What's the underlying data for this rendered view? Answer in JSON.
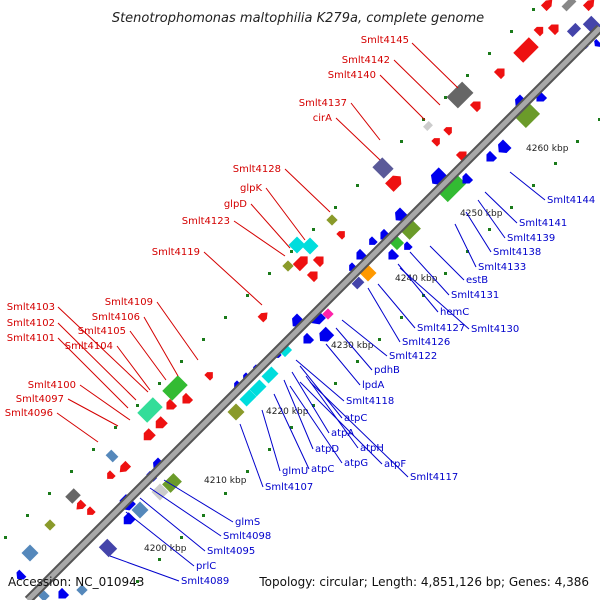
{
  "title": "Stenotrophomonas maltophilia K279a, complete genome",
  "accession": "Accession: NC_010943",
  "topology": "Topology: circular; Length: 4,851,126 bp; Genes: 4,386",
  "colors": {
    "forward_label": "#d40000",
    "reverse_label": "#0000cc",
    "backbone": "#808080",
    "tick_mark": "#1a7a1a"
  },
  "scale_ticks": [
    "4200 kbp",
    "4210 kbp",
    "4220 kbp",
    "4230 kbp",
    "4240 kbp",
    "4250 kbp",
    "4260 kbp"
  ],
  "forward_labels": [
    "Smlt4145",
    "Smlt4142",
    "Smlt4140",
    "Smlt4137",
    "cirA",
    "Smlt4128",
    "glpK",
    "glpD",
    "Smlt4123",
    "Smlt4119",
    "Smlt4109",
    "Smlt4106",
    "Smlt4105",
    "Smlt4104",
    "Smlt4103",
    "Smlt4102",
    "Smlt4101",
    "Smlt4100",
    "Smlt4097",
    "Smlt4096"
  ],
  "reverse_labels": [
    "Smlt4144",
    "Smlt4141",
    "Smlt4139",
    "Smlt4138",
    "Smlt4133",
    "estB",
    "Smlt4131",
    "hemC",
    "Smlt4130",
    "Smlt4127",
    "Smlt4126",
    "Smlt4122",
    "pdhB",
    "lpdA",
    "Smlt4118",
    "atpC",
    "atpA",
    "atpH",
    "atpD",
    "atpG",
    "atpF",
    "Smlt4117",
    "atpC",
    "glmU",
    "Smlt4107",
    "glmS",
    "Smlt4098",
    "Smlt4095",
    "prlC",
    "Smlt4089"
  ]
}
